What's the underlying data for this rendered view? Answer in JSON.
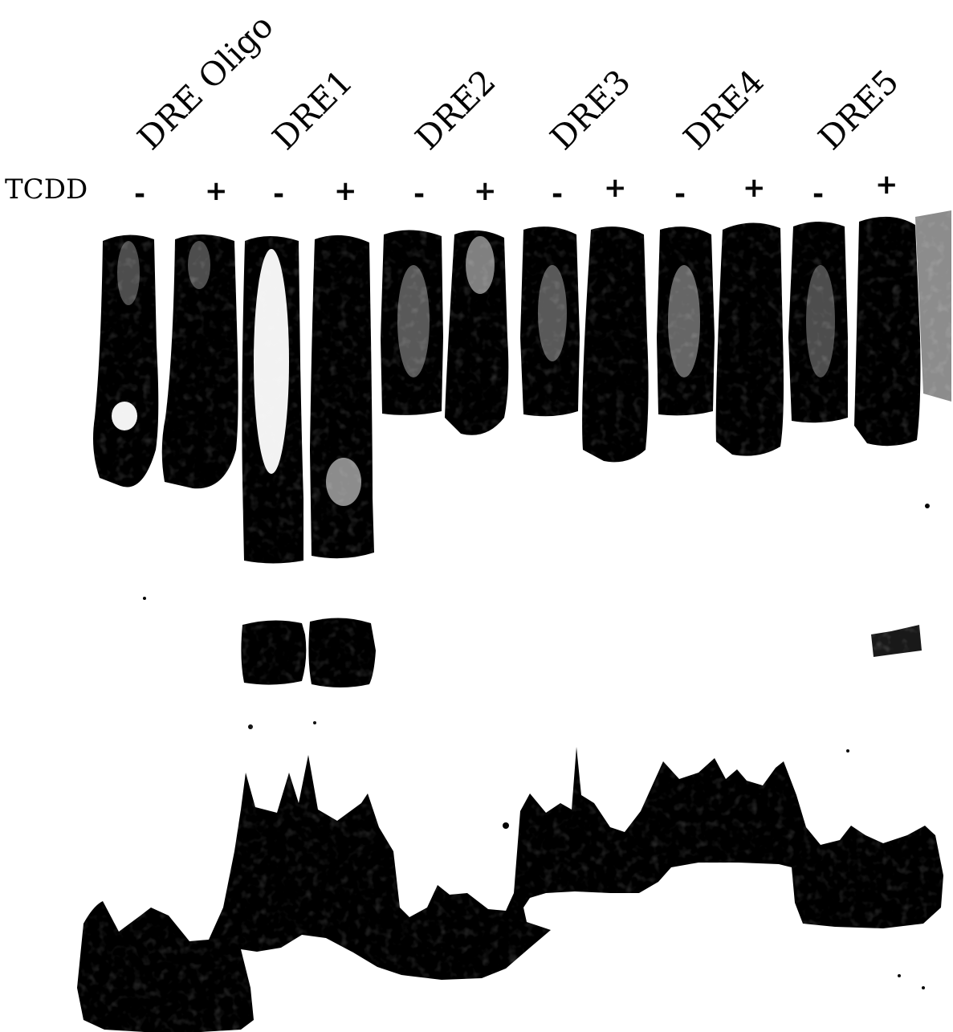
{
  "figure": {
    "treatment_label": "TCDD",
    "lanes": [
      {
        "group": "DRE Oligo",
        "signs": [
          "-",
          "+"
        ]
      },
      {
        "group": "DRE1",
        "signs": [
          "-",
          "+"
        ]
      },
      {
        "group": "DRE2",
        "signs": [
          "-",
          "+"
        ]
      },
      {
        "group": "DRE3",
        "signs": [
          "-",
          "+"
        ]
      },
      {
        "group": "DRE4",
        "signs": [
          "-",
          "+"
        ]
      },
      {
        "group": "DRE5",
        "signs": [
          "-",
          "+"
        ]
      }
    ],
    "colors": {
      "background": "#ffffff",
      "band": "#000000"
    }
  }
}
